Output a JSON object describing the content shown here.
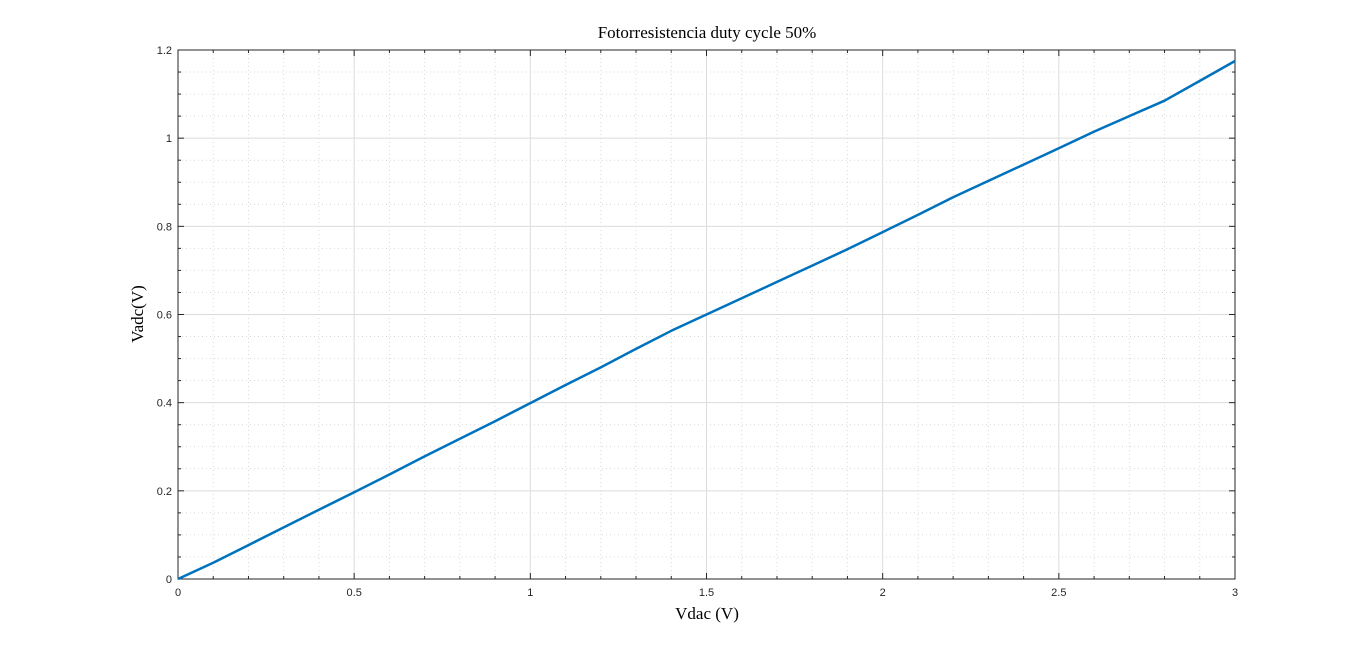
{
  "chart_data": {
    "type": "line",
    "title": "Fotorresistencia duty cycle 50%",
    "xlabel": "Vdac (V)",
    "ylabel": "Vadc(V)",
    "xlim": [
      0,
      3
    ],
    "ylim": [
      0,
      1.2
    ],
    "xticks": [
      0,
      0.5,
      1,
      1.5,
      2,
      2.5,
      3
    ],
    "yticks": [
      0,
      0.2,
      0.4,
      0.6,
      0.8,
      1,
      1.2
    ],
    "xtick_labels": [
      "0",
      "0.5",
      "1",
      "1.5",
      "2",
      "2.5",
      "3"
    ],
    "ytick_labels": [
      "0",
      "0.2",
      "0.4",
      "0.6",
      "0.8",
      "1",
      "1.2"
    ],
    "grid": true,
    "minor_grid": true,
    "series": [
      {
        "color": "#0072bd",
        "x": [
          0,
          0.1,
          0.2,
          0.3,
          0.4,
          0.5,
          0.6,
          0.7,
          0.8,
          0.9,
          1.0,
          1.1,
          1.2,
          1.3,
          1.4,
          1.5,
          1.6,
          1.7,
          1.8,
          1.9,
          2.0,
          2.1,
          2.2,
          2.3,
          2.4,
          2.5,
          2.6,
          2.7,
          2.8,
          2.9,
          3.0
        ],
        "y": [
          0,
          0.037,
          0.077,
          0.117,
          0.157,
          0.197,
          0.237,
          0.278,
          0.318,
          0.358,
          0.399,
          0.44,
          0.48,
          0.522,
          0.563,
          0.6,
          0.637,
          0.674,
          0.711,
          0.748,
          0.787,
          0.826,
          0.866,
          0.903,
          0.94,
          0.977,
          1.015,
          1.05,
          1.085,
          1.13,
          1.175
        ]
      }
    ]
  }
}
